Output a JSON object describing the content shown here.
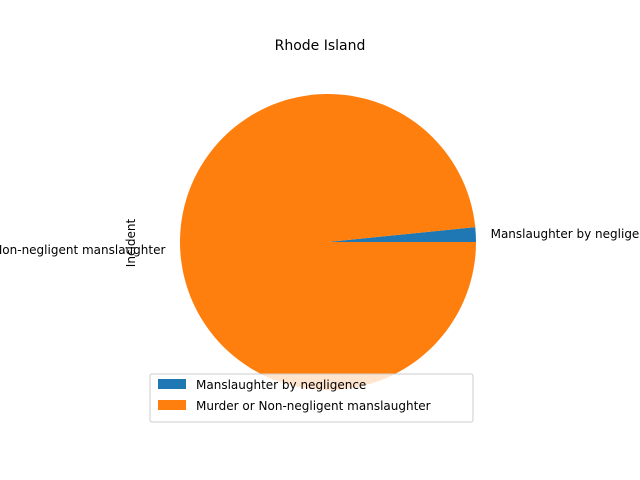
{
  "chart_data": {
    "type": "pie",
    "title": "Rhode Island",
    "ylabel": "Incident",
    "categories": [
      "Manslaughter by negligence",
      "Murder or Non-negligent manslaughter"
    ],
    "values": [
      1.6,
      98.4
    ],
    "colors": [
      "#1f77b4",
      "#ff7f0e"
    ],
    "slice_labels": [
      "Manslaughter by negligence",
      "Murder or Non-negligent manslaughter"
    ],
    "legend": {
      "placement": "lower-center",
      "entries": [
        "Manslaughter by negligence",
        "Murder or Non-negligent manslaughter"
      ]
    }
  }
}
